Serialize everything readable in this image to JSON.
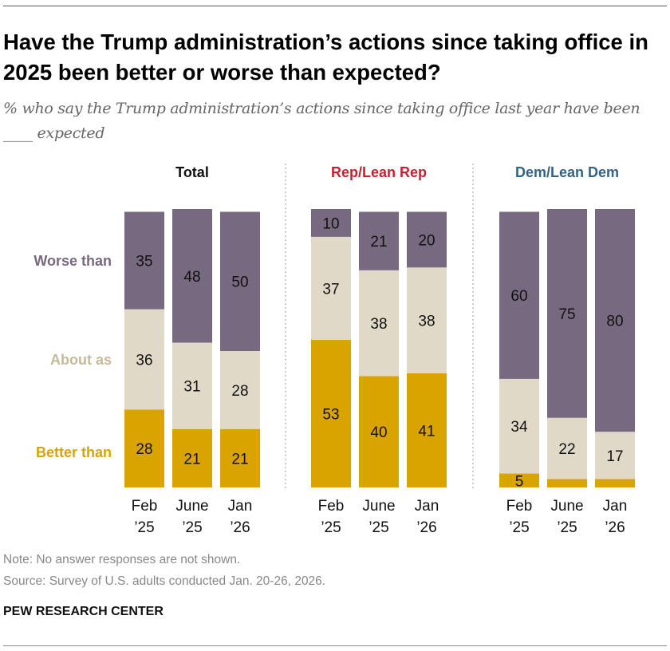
{
  "title": "Have the Trump administration’s actions since taking office in 2025 been better or worse than expected?",
  "subtitle": "% who say the Trump administration’s actions since taking office last year have been ____ expected",
  "note": "Note: No answer responses are not shown.",
  "source": "Source: Survey of U.S. adults conducted Jan. 20-26, 2026.",
  "brand": "PEW RESEARCH CENTER",
  "chart_data": {
    "type": "bar",
    "stacked": true,
    "categories": [
      [
        "Feb",
        "’25"
      ],
      [
        "June",
        "’25"
      ],
      [
        "Jan",
        "’26"
      ]
    ],
    "series_names": [
      "Better than",
      "About as",
      "Worse than"
    ],
    "colors": {
      "Better than": "#d9a400",
      "About as": "#e0d9c8",
      "Worse than": "#77697f"
    },
    "label_colors": {
      "Better than": "#d9a400",
      "About as": "#c5b99a",
      "Worse than": "#77697f"
    },
    "ylim": [
      0,
      100
    ],
    "panels": [
      {
        "name": "Total",
        "color": "#111111",
        "series": [
          {
            "name": "Better than",
            "values": [
              28,
              21,
              21
            ]
          },
          {
            "name": "About as",
            "values": [
              36,
              31,
              28
            ]
          },
          {
            "name": "Worse than",
            "values": [
              35,
              48,
              50
            ]
          }
        ]
      },
      {
        "name": "Rep/Lean Rep",
        "color": "#c8202f",
        "series": [
          {
            "name": "Better than",
            "values": [
              53,
              40,
              41
            ]
          },
          {
            "name": "About as",
            "values": [
              37,
              38,
              38
            ]
          },
          {
            "name": "Worse than",
            "values": [
              10,
              21,
              20
            ]
          }
        ]
      },
      {
        "name": "Dem/Lean Dem",
        "color": "#356383",
        "series": [
          {
            "name": "Better than",
            "values": [
              5,
              3,
              3
            ],
            "printed": [
              true,
              false,
              false
            ]
          },
          {
            "name": "About as",
            "values": [
              34,
              22,
              17
            ]
          },
          {
            "name": "Worse than",
            "values": [
              60,
              75,
              80
            ]
          }
        ]
      }
    ]
  }
}
